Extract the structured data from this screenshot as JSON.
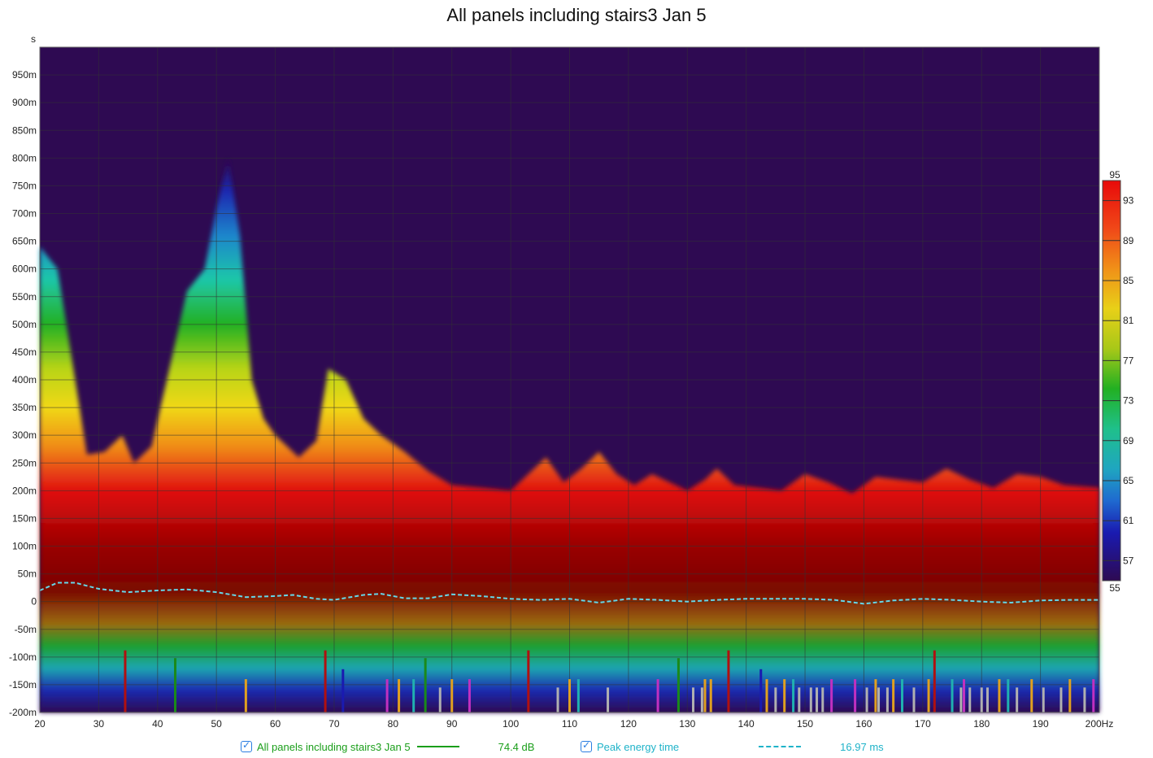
{
  "title": "All panels including stairs3 Jan 5",
  "colors": {
    "background_low": "#2e0a52",
    "grid": "#333333",
    "ridge_line": "#66d6e8",
    "series_green": "#1a9e1a",
    "series_cyan": "#1fb3c9",
    "scale_stops": [
      "#2e0a52",
      "#0a1a9e",
      "#1f7ad1",
      "#1fc7a8",
      "#22b022",
      "#d8d814",
      "#f09018",
      "#e01010",
      "#7a0000"
    ]
  },
  "legend": [
    {
      "label": "All panels including stairs3 Jan 5",
      "value": "74.4 dB",
      "color": "#1a9e1a",
      "style": "solid"
    },
    {
      "label": "Peak energy time",
      "value": "16.97 ms",
      "color": "#1fb3c9",
      "style": "dashed"
    }
  ],
  "chart_data": {
    "type": "heatmap",
    "title": "All panels including stairs3 Jan 5",
    "xlabel": "",
    "ylabel": "",
    "x_unit": "Hz",
    "y_unit": "s",
    "xlim": [
      20,
      200
    ],
    "ylim": [
      -0.2,
      1.0
    ],
    "x_ticks": [
      "20",
      "30",
      "40",
      "50",
      "60",
      "70",
      "80",
      "90",
      "100",
      "110",
      "120",
      "130",
      "140",
      "150",
      "160",
      "170",
      "180",
      "190",
      "200Hz"
    ],
    "y_ticks": [
      "-200m",
      "-150m",
      "-100m",
      "-50m",
      "0",
      "50m",
      "100m",
      "150m",
      "200m",
      "250m",
      "300m",
      "350m",
      "400m",
      "450m",
      "500m",
      "550m",
      "600m",
      "650m",
      "700m",
      "750m",
      "800m",
      "850m",
      "900m",
      "950m"
    ],
    "color_scale": {
      "min": 55,
      "max": 95,
      "ticks": [
        95,
        93,
        89,
        85,
        81,
        77,
        73,
        69,
        65,
        61,
        57,
        55
      ]
    },
    "decay_ceiling_ms": [
      [
        20,
        640
      ],
      [
        23,
        600
      ],
      [
        26,
        400
      ],
      [
        28,
        265
      ],
      [
        31,
        270
      ],
      [
        34,
        300
      ],
      [
        36,
        250
      ],
      [
        39,
        280
      ],
      [
        42,
        420
      ],
      [
        45,
        560
      ],
      [
        48,
        600
      ],
      [
        50,
        710
      ],
      [
        52,
        800
      ],
      [
        54,
        660
      ],
      [
        56,
        400
      ],
      [
        58,
        330
      ],
      [
        60,
        300
      ],
      [
        62,
        280
      ],
      [
        64,
        260
      ],
      [
        67,
        290
      ],
      [
        69,
        420
      ],
      [
        72,
        400
      ],
      [
        75,
        330
      ],
      [
        78,
        300
      ],
      [
        82,
        270
      ],
      [
        86,
        235
      ],
      [
        90,
        210
      ],
      [
        95,
        205
      ],
      [
        100,
        200
      ],
      [
        103,
        230
      ],
      [
        106,
        260
      ],
      [
        109,
        215
      ],
      [
        112,
        240
      ],
      [
        115,
        270
      ],
      [
        118,
        230
      ],
      [
        121,
        210
      ],
      [
        124,
        230
      ],
      [
        127,
        215
      ],
      [
        130,
        200
      ],
      [
        133,
        220
      ],
      [
        135,
        240
      ],
      [
        138,
        210
      ],
      [
        142,
        205
      ],
      [
        146,
        200
      ],
      [
        150,
        230
      ],
      [
        154,
        215
      ],
      [
        158,
        195
      ],
      [
        162,
        225
      ],
      [
        166,
        220
      ],
      [
        170,
        215
      ],
      [
        174,
        240
      ],
      [
        178,
        220
      ],
      [
        182,
        205
      ],
      [
        186,
        230
      ],
      [
        190,
        225
      ],
      [
        194,
        210
      ],
      [
        200,
        205
      ]
    ],
    "peak_energy_time_ms": [
      [
        20,
        20
      ],
      [
        23,
        34
      ],
      [
        26,
        34
      ],
      [
        30,
        23
      ],
      [
        35,
        17
      ],
      [
        40,
        20
      ],
      [
        45,
        22
      ],
      [
        50,
        17
      ],
      [
        55,
        8
      ],
      [
        60,
        10
      ],
      [
        63,
        12
      ],
      [
        67,
        5
      ],
      [
        70,
        3
      ],
      [
        75,
        12
      ],
      [
        78,
        14
      ],
      [
        82,
        6
      ],
      [
        86,
        6
      ],
      [
        90,
        13
      ],
      [
        95,
        10
      ],
      [
        100,
        5
      ],
      [
        105,
        3
      ],
      [
        110,
        5
      ],
      [
        115,
        -2
      ],
      [
        120,
        5
      ],
      [
        125,
        3
      ],
      [
        130,
        0
      ],
      [
        135,
        3
      ],
      [
        140,
        5
      ],
      [
        145,
        5
      ],
      [
        150,
        5
      ],
      [
        155,
        3
      ],
      [
        160,
        -4
      ],
      [
        165,
        2
      ],
      [
        170,
        5
      ],
      [
        175,
        3
      ],
      [
        180,
        0
      ],
      [
        185,
        -2
      ],
      [
        190,
        2
      ],
      [
        195,
        3
      ],
      [
        200,
        3
      ]
    ],
    "markers": [
      {
        "x": 34.5,
        "color": "#b01010",
        "top_ms": -88
      },
      {
        "x": 43,
        "color": "#1a8a1a",
        "top_ms": -102
      },
      {
        "x": 55,
        "color": "#e0a020",
        "top_ms": -140
      },
      {
        "x": 68.5,
        "color": "#b01010",
        "top_ms": -88
      },
      {
        "x": 71.5,
        "color": "#1a1ab0",
        "top_ms": -122
      },
      {
        "x": 79,
        "color": "#c030c0",
        "top_ms": -140
      },
      {
        "x": 81,
        "color": "#e0a020",
        "top_ms": -140
      },
      {
        "x": 83.5,
        "color": "#20b0b0",
        "top_ms": -140
      },
      {
        "x": 85.5,
        "color": "#1a8a1a",
        "top_ms": -102
      },
      {
        "x": 88,
        "color": "#b0b0b0",
        "top_ms": -155
      },
      {
        "x": 90,
        "color": "#e0a020",
        "top_ms": -140
      },
      {
        "x": 93,
        "color": "#c030c0",
        "top_ms": -140
      },
      {
        "x": 103,
        "color": "#b01010",
        "top_ms": -88
      },
      {
        "x": 108,
        "color": "#b0b0b0",
        "top_ms": -155
      },
      {
        "x": 110,
        "color": "#e0a020",
        "top_ms": -140
      },
      {
        "x": 111.5,
        "color": "#20b0b0",
        "top_ms": -140
      },
      {
        "x": 116.5,
        "color": "#b0b0b0",
        "top_ms": -155
      },
      {
        "x": 125,
        "color": "#c030c0",
        "top_ms": -140
      },
      {
        "x": 128.5,
        "color": "#1a8a1a",
        "top_ms": -102
      },
      {
        "x": 131,
        "color": "#b0b0b0",
        "top_ms": -155
      },
      {
        "x": 132.5,
        "color": "#b0b0b0",
        "top_ms": -155
      },
      {
        "x": 133,
        "color": "#e0a020",
        "top_ms": -140
      },
      {
        "x": 134,
        "color": "#e0a020",
        "top_ms": -140
      },
      {
        "x": 137,
        "color": "#b01010",
        "top_ms": -88
      },
      {
        "x": 142.5,
        "color": "#1a1ab0",
        "top_ms": -122
      },
      {
        "x": 143.5,
        "color": "#e0a020",
        "top_ms": -140
      },
      {
        "x": 145,
        "color": "#b0b0b0",
        "top_ms": -155
      },
      {
        "x": 146.5,
        "color": "#e0a020",
        "top_ms": -140
      },
      {
        "x": 148,
        "color": "#20b0b0",
        "top_ms": -140
      },
      {
        "x": 149,
        "color": "#b0b0b0",
        "top_ms": -155
      },
      {
        "x": 151,
        "color": "#b0b0b0",
        "top_ms": -155
      },
      {
        "x": 152,
        "color": "#b0b0b0",
        "top_ms": -155
      },
      {
        "x": 153,
        "color": "#b0b0b0",
        "top_ms": -155
      },
      {
        "x": 154.5,
        "color": "#c030c0",
        "top_ms": -140
      },
      {
        "x": 158.5,
        "color": "#c030c0",
        "top_ms": -140
      },
      {
        "x": 160.5,
        "color": "#b0b0b0",
        "top_ms": -155
      },
      {
        "x": 162,
        "color": "#e0a020",
        "top_ms": -140
      },
      {
        "x": 162.5,
        "color": "#b0b0b0",
        "top_ms": -155
      },
      {
        "x": 164,
        "color": "#b0b0b0",
        "top_ms": -155
      },
      {
        "x": 165,
        "color": "#e0a020",
        "top_ms": -140
      },
      {
        "x": 166.5,
        "color": "#20b0b0",
        "top_ms": -140
      },
      {
        "x": 168.5,
        "color": "#b0b0b0",
        "top_ms": -155
      },
      {
        "x": 171,
        "color": "#e0a020",
        "top_ms": -140
      },
      {
        "x": 172,
        "color": "#b01010",
        "top_ms": -88
      },
      {
        "x": 175,
        "color": "#20b0b0",
        "top_ms": -140
      },
      {
        "x": 176.5,
        "color": "#b0b0b0",
        "top_ms": -155
      },
      {
        "x": 177,
        "color": "#c030c0",
        "top_ms": -140
      },
      {
        "x": 178,
        "color": "#b0b0b0",
        "top_ms": -155
      },
      {
        "x": 180,
        "color": "#b0b0b0",
        "top_ms": -155
      },
      {
        "x": 181,
        "color": "#b0b0b0",
        "top_ms": -155
      },
      {
        "x": 183,
        "color": "#e0a020",
        "top_ms": -140
      },
      {
        "x": 184.5,
        "color": "#20b0b0",
        "top_ms": -140
      },
      {
        "x": 186,
        "color": "#b0b0b0",
        "top_ms": -155
      },
      {
        "x": 188.5,
        "color": "#e0a020",
        "top_ms": -140
      },
      {
        "x": 190.5,
        "color": "#b0b0b0",
        "top_ms": -155
      },
      {
        "x": 193.5,
        "color": "#b0b0b0",
        "top_ms": -155
      },
      {
        "x": 195,
        "color": "#e0a020",
        "top_ms": -140
      },
      {
        "x": 197.5,
        "color": "#b0b0b0",
        "top_ms": -155
      },
      {
        "x": 199,
        "color": "#c030c0",
        "top_ms": -140
      }
    ]
  }
}
